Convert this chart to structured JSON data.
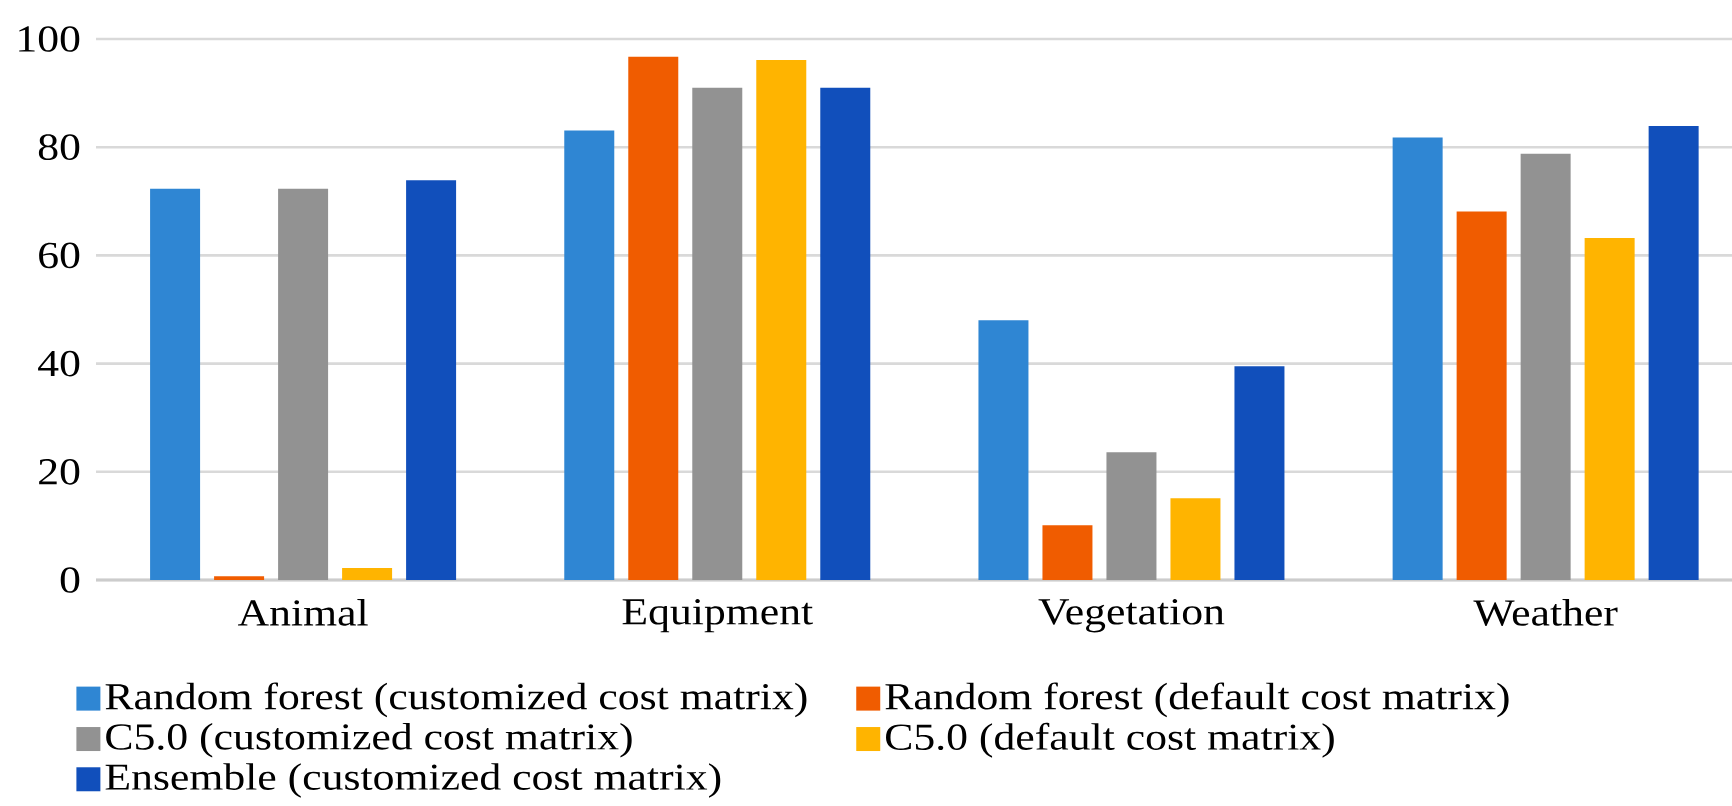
{
  "chart_data": {
    "type": "bar",
    "categories": [
      "Animal",
      "Equipment",
      "Vegetation",
      "Weather"
    ],
    "series": [
      {
        "name": "Random forest (customized cost matrix)",
        "color": "#2f86d3",
        "values": [
          72.3,
          83.1,
          48.0,
          81.8
        ]
      },
      {
        "name": "Random forest (default cost matrix)",
        "color": "#f05c00",
        "values": [
          0.7,
          96.7,
          10.1,
          68.1
        ]
      },
      {
        "name": "C5.0 (customized cost matrix)",
        "color": "#929292",
        "values": [
          72.3,
          91.0,
          23.6,
          78.8
        ]
      },
      {
        "name": "C5.0 (default cost matrix)",
        "color": "#ffb400",
        "values": [
          2.2,
          96.1,
          15.1,
          63.2
        ]
      },
      {
        "name": "Ensemble (customized cost matrix)",
        "color": "#114fbb",
        "values": [
          73.9,
          91.0,
          39.5,
          83.9
        ]
      }
    ],
    "ylim": [
      0,
      100
    ],
    "yticks": [
      0,
      20,
      40,
      60,
      80,
      100
    ],
    "grid": "y",
    "legend": "bottom"
  }
}
